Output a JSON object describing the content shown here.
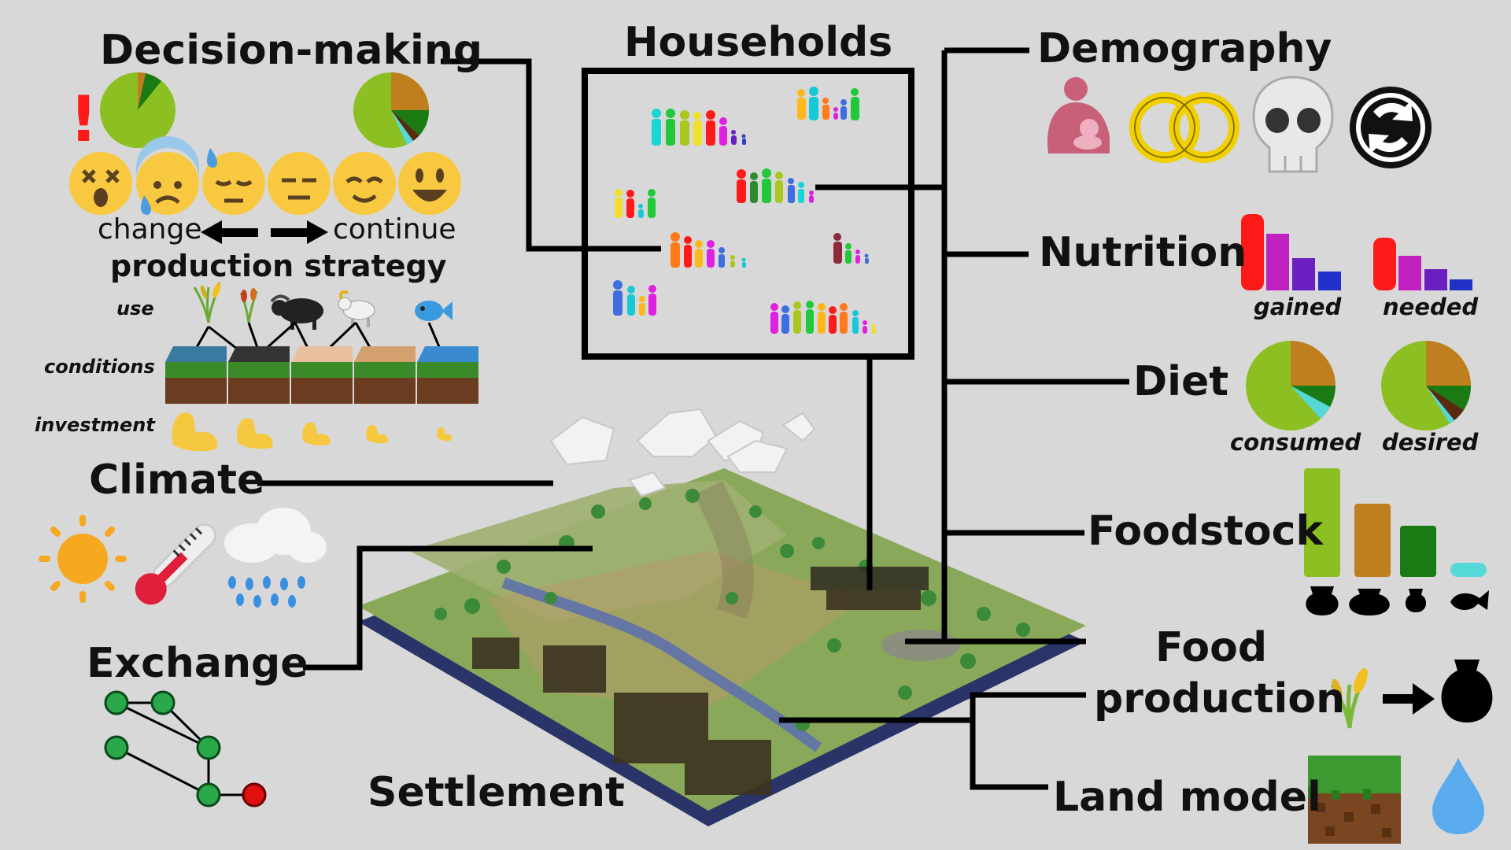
{
  "labels": {
    "decision_making": "Decision-making",
    "households": "Households",
    "demography": "Demography",
    "nutrition": "Nutrition",
    "diet": "Diet",
    "foodstock": "Foodstock",
    "food_production_1": "Food",
    "food_production_2": "production",
    "land_model": "Land model",
    "settlement": "Settlement",
    "exchange": "Exchange",
    "climate": "Climate"
  },
  "decision": {
    "exclaim": "!",
    "change": "change",
    "continue": "continue",
    "strategy": "production strategy",
    "use": "use",
    "conditions": "conditions",
    "investment": "investment"
  },
  "nutrition_charts": {
    "gained": "gained",
    "needed": "needed"
  },
  "diet_charts": {
    "consumed": "consumed",
    "desired": "desired"
  },
  "colors": {
    "background": "#d8d8d8",
    "line": "#000000",
    "grain_green": "#8cc022",
    "brown": "#c07f1e",
    "dark_green": "#1a7a14",
    "cyan": "#55d8d8",
    "red": "#ff1a1a",
    "magenta": "#c020c0",
    "purple": "#6a20c0",
    "blue": "#2030c8"
  },
  "icons": [
    "breastfeeding-icon",
    "rings-icon",
    "skull-icon",
    "cycle-icon",
    "sun-icon",
    "thermometer-icon",
    "rain-cloud-icon",
    "grain-icon",
    "pot-icon",
    "water-drop-icon",
    "soil-block-icon",
    "buffalo-icon",
    "goat-icon",
    "fish-icon",
    "muscle-icon",
    "sweat-emoji-icon"
  ]
}
